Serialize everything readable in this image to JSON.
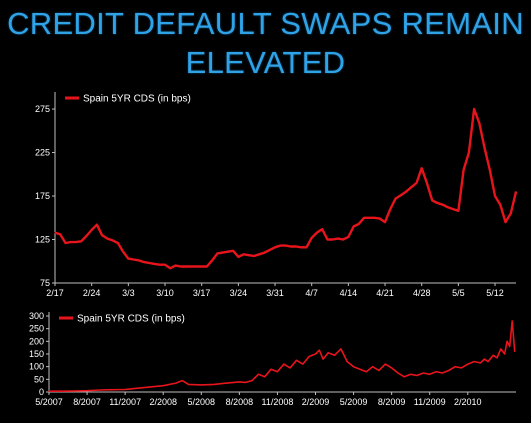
{
  "title_lines": [
    "CREDIT DEFAULT SWAPS REMAIN",
    "ELEVATED"
  ],
  "colors": {
    "title": "#2fa3e6",
    "series": "#e8141c",
    "background": "#000000"
  },
  "chart_data": [
    {
      "type": "line",
      "legend": "Spain 5YR CDS (in bps)",
      "legend_placement": "top-left",
      "grid": false,
      "ylim": [
        75,
        290
      ],
      "yticks": [
        75,
        125,
        175,
        225,
        275
      ],
      "xlim": [
        0,
        88
      ],
      "xticks": [
        {
          "label": "2/17",
          "x": 0
        },
        {
          "label": "2/24",
          "x": 7
        },
        {
          "label": "3/3",
          "x": 14
        },
        {
          "label": "3/10",
          "x": 21
        },
        {
          "label": "3/17",
          "x": 28
        },
        {
          "label": "3/24",
          "x": 35
        },
        {
          "label": "3/31",
          "x": 42
        },
        {
          "label": "4/7",
          "x": 49
        },
        {
          "label": "4/14",
          "x": 56
        },
        {
          "label": "4/21",
          "x": 63
        },
        {
          "label": "4/28",
          "x": 70
        },
        {
          "label": "5/5",
          "x": 77
        },
        {
          "label": "5/12",
          "x": 84
        }
      ],
      "x": [
        0,
        1,
        2,
        3,
        4,
        5,
        6,
        7,
        8,
        9,
        10,
        11,
        12,
        13,
        14,
        15,
        16,
        17,
        18,
        19,
        20,
        21,
        22,
        23,
        24,
        25,
        26,
        27,
        28,
        29,
        30,
        31,
        32,
        33,
        34,
        35,
        36,
        37,
        38,
        39,
        40,
        41,
        42,
        43,
        44,
        45,
        46,
        47,
        48,
        49,
        50,
        51,
        52,
        53,
        54,
        55,
        56,
        57,
        58,
        59,
        60,
        61,
        62,
        63,
        64,
        65,
        66,
        67,
        68,
        69,
        70,
        71,
        72,
        73,
        74,
        75,
        76,
        77,
        78,
        79,
        80,
        81,
        82,
        83,
        84,
        85,
        86,
        87,
        88
      ],
      "values": [
        133,
        131,
        121,
        122,
        122,
        123,
        129,
        136,
        142,
        130,
        126,
        124,
        121,
        111,
        103,
        102,
        101,
        99,
        98,
        97,
        96,
        96,
        92,
        95,
        94,
        94,
        94,
        94,
        94,
        94,
        101,
        109,
        110,
        111,
        112,
        105,
        108,
        107,
        106,
        108,
        110,
        113,
        116,
        118,
        118,
        117,
        117,
        116,
        116,
        127,
        133,
        137,
        125,
        125,
        126,
        125,
        128,
        140,
        143,
        150,
        150,
        150,
        149,
        145,
        160,
        172,
        176,
        180,
        185,
        190,
        207,
        190,
        170,
        167,
        165,
        162,
        160,
        158,
        205,
        225,
        275,
        259,
        230,
        205,
        175,
        165,
        145,
        155,
        180
      ]
    },
    {
      "type": "line",
      "legend": "Spain 5YR CDS (in bps)",
      "legend_placement": "top-left",
      "grid": false,
      "ylim": [
        0,
        300
      ],
      "yticks": [
        0,
        50,
        100,
        150,
        200,
        250,
        300
      ],
      "xticks": [
        {
          "label": "5/2007",
          "x": 0
        },
        {
          "label": "8/2007",
          "x": 3
        },
        {
          "label": "11/2007",
          "x": 6
        },
        {
          "label": "2/2008",
          "x": 9
        },
        {
          "label": "5/2008",
          "x": 12
        },
        {
          "label": "8/2008",
          "x": 15
        },
        {
          "label": "11/2008",
          "x": 18
        },
        {
          "label": "2/2009",
          "x": 21
        },
        {
          "label": "5/2009",
          "x": 24
        },
        {
          "label": "8/2009",
          "x": 27
        },
        {
          "label": "11/2009",
          "x": 30
        },
        {
          "label": "2/2010",
          "x": 33
        }
      ],
      "xlim": [
        0,
        36.8
      ],
      "x": [
        0,
        1,
        2,
        3,
        4,
        5,
        6,
        7,
        8,
        9,
        10,
        10.5,
        11,
        12,
        13,
        14,
        15,
        15.5,
        16,
        16.5,
        17,
        17.5,
        18,
        18.5,
        19,
        19.5,
        20,
        20.5,
        21,
        21.3,
        21.6,
        22,
        22.5,
        23,
        23.5,
        24,
        24.5,
        25,
        25.5,
        26,
        26.5,
        27,
        27.5,
        28,
        28.5,
        29,
        29.5,
        30,
        30.5,
        31,
        31.5,
        32,
        32.5,
        33,
        33.5,
        34,
        34.3,
        34.6,
        35,
        35.3,
        35.6,
        35.9,
        36.1,
        36.3,
        36.5,
        36.7
      ],
      "values": [
        3,
        3,
        4,
        5,
        8,
        9,
        10,
        15,
        20,
        25,
        35,
        45,
        30,
        28,
        30,
        35,
        40,
        38,
        45,
        70,
        60,
        90,
        80,
        110,
        95,
        125,
        110,
        140,
        150,
        165,
        130,
        155,
        145,
        170,
        120,
        100,
        90,
        80,
        100,
        85,
        110,
        95,
        75,
        60,
        70,
        65,
        75,
        70,
        80,
        75,
        85,
        100,
        95,
        110,
        120,
        115,
        130,
        120,
        145,
        135,
        170,
        150,
        200,
        180,
        280,
        160
      ]
    }
  ]
}
